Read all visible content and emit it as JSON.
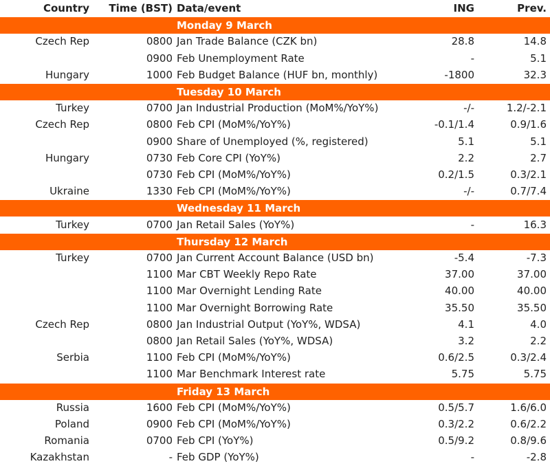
{
  "header": [
    "Country",
    "Time (BST)",
    "Data/event",
    "ING",
    "Prev."
  ],
  "sections": [
    {
      "day": "Monday 9 March",
      "rows": [
        [
          "Czech Rep",
          "0800",
          "Jan Trade Balance (CZK bn)",
          "28.8",
          "14.8"
        ],
        [
          null,
          "0900",
          "Feb Unemployment Rate",
          "-",
          "5.1"
        ],
        [
          "Hungary",
          "1000",
          "Feb Budget Balance (HUF bn, monthly)",
          "-1800",
          "32.3"
        ]
      ]
    },
    {
      "day": "Tuesday 10 March",
      "rows": [
        [
          "Turkey",
          "0700",
          "Jan Industrial Production (MoM%/YoY%)",
          "-/-",
          "1.2/-2.1"
        ],
        [
          "Czech Rep",
          "0800",
          "Feb CPI (MoM%/YoY%)",
          "-0.1/1.4",
          "0.9/1.6"
        ],
        [
          null,
          "0900",
          "Share of Unemployed (%, registered)",
          "5.1",
          "5.1"
        ],
        [
          "Hungary",
          "0730",
          "Feb Core CPI (YoY%)",
          "2.2",
          "2.7"
        ],
        [
          null,
          "0730",
          "Feb CPI (MoM%/YoY%)",
          "0.2/1.5",
          "0.3/2.1"
        ],
        [
          "Ukraine",
          "1330",
          "Feb CPI (MoM%/YoY%)",
          "-/-",
          "0.7/7.4"
        ]
      ]
    },
    {
      "day": "Wednesday 11 March",
      "rows": [
        [
          "Turkey",
          "0700",
          "Jan Retail Sales (YoY%)",
          "-",
          "16.3"
        ]
      ]
    },
    {
      "day": "Thursday 12 March",
      "rows": [
        [
          "Turkey",
          "0700",
          "Jan Current Account Balance (USD bn)",
          "-5.4",
          "-7.3"
        ],
        [
          null,
          "1100",
          "Mar CBT Weekly Repo Rate",
          "37.00",
          "37.00"
        ],
        [
          null,
          "1100",
          "Mar Overnight Lending Rate",
          "40.00",
          "40.00"
        ],
        [
          null,
          "1100",
          "Mar Overnight Borrowing Rate",
          "35.50",
          "35.50"
        ],
        [
          "Czech Rep",
          "0800",
          "Jan Industrial Output (YoY%, WDSA)",
          "4.1",
          "4.0"
        ],
        [
          null,
          "0800",
          "Jan Retail Sales (YoY%, WDSA)",
          "3.2",
          "2.2"
        ],
        [
          "Serbia",
          "1100",
          "Feb CPI (MoM%/YoY%)",
          "0.6/2.5",
          "0.3/2.4"
        ],
        [
          null,
          "1100",
          "Mar Benchmark Interest rate",
          "5.75",
          "5.75"
        ]
      ]
    },
    {
      "day": "Friday 13 March",
      "rows": [
        [
          "Russia",
          "1600",
          "Feb CPI (MoM%/YoY%)",
          "0.5/5.7",
          "1.6/6.0"
        ],
        [
          "Poland",
          "0900",
          "Feb CPI (MoM%/YoY%)",
          "0.3/2.2",
          "0.6/2.2"
        ],
        [
          "Romania",
          "0700",
          "Feb CPI (YoY%)",
          "0.5/9.2",
          "0.8/9.6"
        ],
        [
          "Kazakhstan",
          "-",
          "Feb GDP (YoY%)",
          "-",
          "-2.8"
        ]
      ]
    }
  ]
}
